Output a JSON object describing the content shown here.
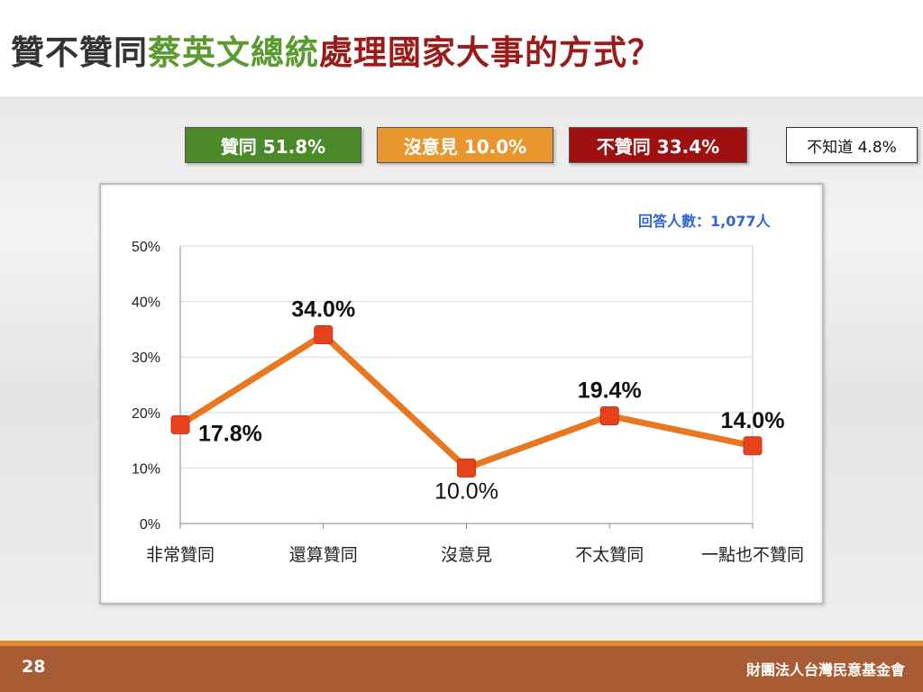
{
  "title": {
    "part1": "贊不贊同",
    "part2": "蔡英文總統",
    "part3": "處理國家大事的方式？",
    "color_part1": "#333333",
    "color_part2": "#5a9a2e",
    "color_part3": "#9b1b1b"
  },
  "summary": [
    {
      "label": "贊同 51.8%",
      "color": "#4a8a2a"
    },
    {
      "label": "沒意見 10.0%",
      "color": "#e8962e"
    },
    {
      "label": "不贊同 33.4%",
      "color": "#a01010"
    },
    {
      "label": "不知道 4.8%",
      "color": "#ffffff"
    }
  ],
  "respondents": "回答人數：1,077人",
  "chart_data": {
    "type": "line",
    "categories": [
      "非常贊同",
      "還算贊同",
      "沒意見",
      "不太贊同",
      "一點也不贊同"
    ],
    "values": [
      17.8,
      34.0,
      10.0,
      19.4,
      14.0
    ],
    "data_labels": [
      "17.8%",
      "34.0%",
      "10.0%",
      "19.4%",
      "14.0%"
    ],
    "ylim": [
      0,
      50
    ],
    "yticks": [
      "0%",
      "10%",
      "20%",
      "30%",
      "40%",
      "50%"
    ],
    "grid": true,
    "line_color": "#e87722",
    "marker_color": "#e8421c"
  },
  "footer": {
    "page_number": "28",
    "org": "財團法人台灣民意基金會"
  }
}
